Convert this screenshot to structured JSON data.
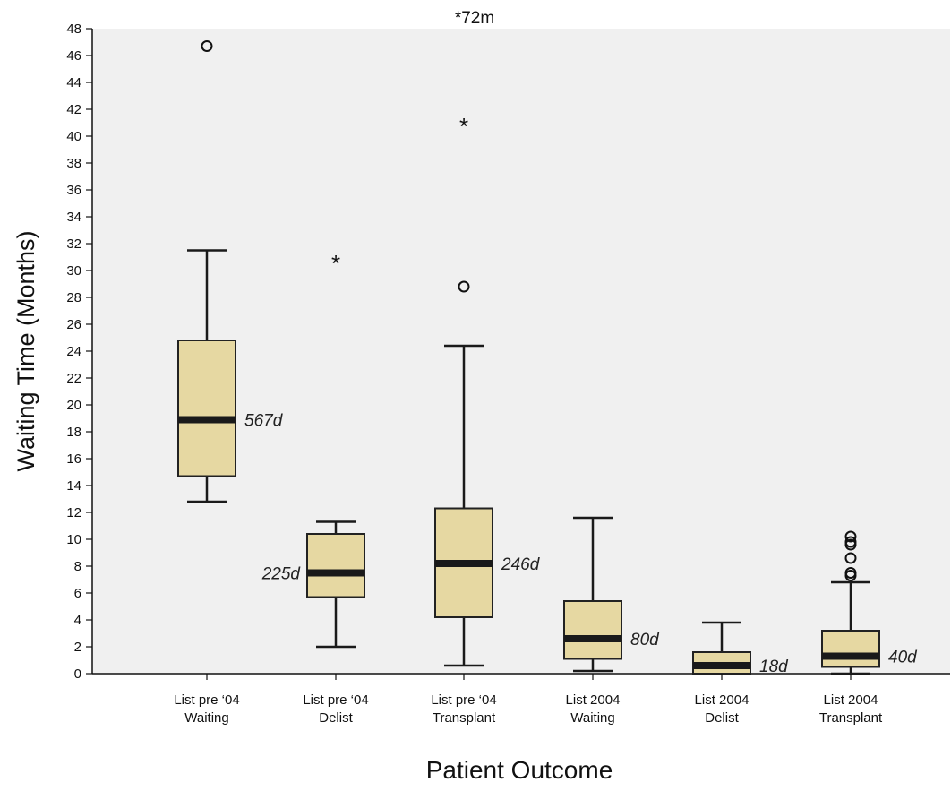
{
  "chart_data": {
    "type": "box",
    "ylabel": "Waiting Time (Months)",
    "xlabel": "Patient Outcome",
    "ylim": [
      0,
      48
    ],
    "ytick_step": 2,
    "annotation": "*72m",
    "colors": {
      "box_fill": "#e6d8a2",
      "box_stroke": "#222222",
      "median": "#1a1a1a",
      "plot_bg": "#f0f0f0"
    },
    "categories": [
      {
        "line1": "List pre ‘04",
        "line2": "Waiting",
        "whisker_low": 12.8,
        "q1": 14.7,
        "median": 18.9,
        "q3": 24.8,
        "whisker_high": 31.5,
        "median_label": "567d",
        "label_side": "right",
        "outliers": [
          46.7
        ],
        "extremes": []
      },
      {
        "line1": "List pre ‘04",
        "line2": "Delist",
        "whisker_low": 2.0,
        "q1": 5.7,
        "median": 7.5,
        "q3": 10.4,
        "whisker_high": 11.3,
        "median_label": "225d",
        "label_side": "left",
        "outliers": [],
        "extremes": [
          30.8
        ]
      },
      {
        "line1": "List pre ‘04",
        "line2": "Transplant",
        "whisker_low": 0.6,
        "q1": 4.2,
        "median": 8.2,
        "q3": 12.3,
        "whisker_high": 24.4,
        "median_label": "246d",
        "label_side": "right",
        "outliers": [
          28.8
        ],
        "extremes": [
          41.0
        ]
      },
      {
        "line1": "List 2004",
        "line2": "Waiting",
        "whisker_low": 0.2,
        "q1": 1.1,
        "median": 2.6,
        "q3": 5.4,
        "whisker_high": 11.6,
        "median_label": "80d",
        "label_side": "right",
        "outliers": [],
        "extremes": []
      },
      {
        "line1": "List 2004",
        "line2": "Delist",
        "whisker_low": 0.0,
        "q1": 0.0,
        "median": 0.6,
        "q3": 1.6,
        "whisker_high": 3.8,
        "median_label": "18d",
        "label_side": "right",
        "outliers": [],
        "extremes": []
      },
      {
        "line1": "List 2004",
        "line2": "Transplant",
        "whisker_low": 0.0,
        "q1": 0.5,
        "median": 1.3,
        "q3": 3.2,
        "whisker_high": 6.8,
        "median_label": "40d",
        "label_side": "right",
        "outliers": [
          7.3,
          7.5,
          8.6,
          9.6,
          9.8,
          10.2
        ],
        "extremes": []
      }
    ]
  }
}
